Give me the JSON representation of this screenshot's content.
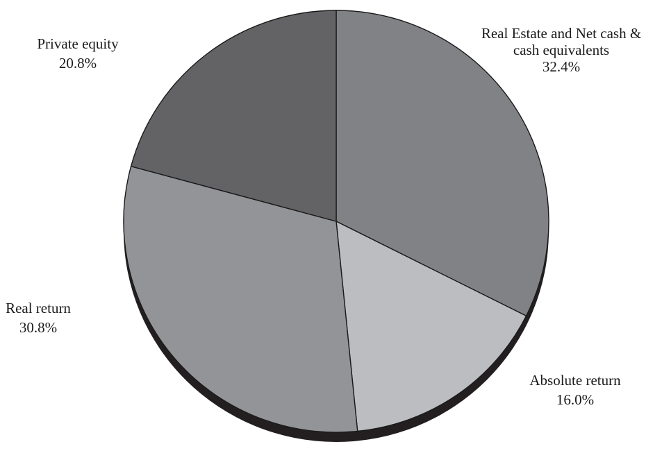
{
  "chart_data": {
    "type": "pie",
    "title": "",
    "slices": [
      {
        "label": [
          "Real Estate and Net cash &",
          "cash equivalents"
        ],
        "value": 32.4,
        "value_label": "32.4%",
        "color": "#818285"
      },
      {
        "label": [
          "Absolute return"
        ],
        "value": 16.0,
        "value_label": "16.0%",
        "color": "#bcbdc0"
      },
      {
        "label": [
          "Real return"
        ],
        "value": 30.8,
        "value_label": "30.8%",
        "color": "#939497"
      },
      {
        "label": [
          "Private equity"
        ],
        "value": 20.8,
        "value_label": "20.8%",
        "color": "#636366"
      }
    ],
    "start_angle_deg": 0,
    "direction": "clockwise",
    "effect": "3d-shadow",
    "shadow_color": "#231f20",
    "edge_color": "#1a1a1a"
  }
}
